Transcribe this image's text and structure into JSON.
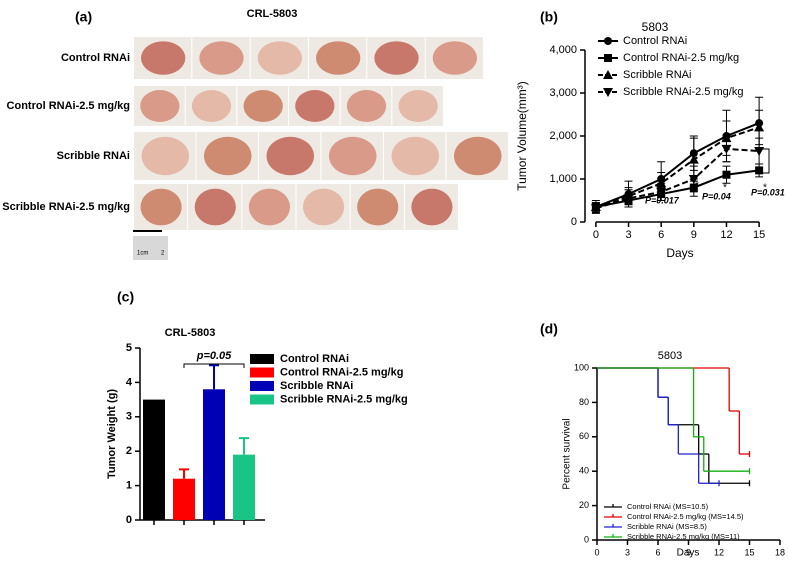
{
  "photo_panel": {
    "panel_label": "(a)",
    "title": "CRL-5803",
    "rows": [
      "Control RNAi",
      "Control RNAi-2.5 mg/kg",
      "Scribble RNAi",
      "Scribble RNAi-2.5 mg/kg"
    ],
    "scale_bar": [
      "1cm",
      "2"
    ]
  },
  "chart_data": [
    {
      "type": "line",
      "panel_label": "(b)",
      "title": "5803",
      "x_label": "Days",
      "y_label": "Tumor Volume(mm³)",
      "x": [
        0,
        3,
        6,
        9,
        12,
        15
      ],
      "xlim": [
        -1,
        16
      ],
      "xticks": [
        0,
        3,
        6,
        9,
        12,
        15
      ],
      "ylim": [
        0,
        4000
      ],
      "yticks": [
        0,
        {
          "value": 1000,
          "label": "1,000"
        },
        {
          "value": 2000,
          "label": "2,000"
        },
        {
          "value": 3000,
          "label": "3,000"
        },
        {
          "value": 4000,
          "label": "4,000"
        }
      ],
      "series": [
        {
          "name": "Control RNAi",
          "color": "#000000",
          "dash": false,
          "marker": "circle",
          "values": [
            350,
            650,
            1000,
            1600,
            2000,
            2300
          ],
          "errors": [
            150,
            300,
            400,
            400,
            600,
            600
          ]
        },
        {
          "name": "Control RNAi-2.5 mg/kg",
          "color": "#000000",
          "dash": false,
          "marker": "square",
          "values": [
            350,
            500,
            650,
            800,
            1100,
            1200
          ],
          "errors": [
            100,
            150,
            150,
            200,
            200,
            150
          ]
        },
        {
          "name": "Scribble RNAi",
          "color": "#000000",
          "dash": true,
          "marker": "triangle",
          "values": [
            350,
            600,
            900,
            1450,
            1950,
            2200
          ],
          "errors": [
            100,
            200,
            250,
            500,
            400,
            400
          ]
        },
        {
          "name": "Scribble RNAi-2.5 mg/kg",
          "color": "#000000",
          "dash": true,
          "marker": "down-triangle",
          "values": [
            320,
            550,
            700,
            1000,
            1700,
            1650
          ],
          "errors": [
            100,
            200,
            200,
            300,
            300,
            300
          ]
        }
      ],
      "annotations": [
        "P=0.017",
        "P=0.04",
        "P=0.031"
      ],
      "stars": [
        "*",
        "*",
        "*"
      ]
    },
    {
      "type": "bar",
      "panel_label": "(c)",
      "title": "CRL-5803",
      "y_label": "Tumor Weight (g)",
      "ylim": [
        0,
        5
      ],
      "yticks": [
        0,
        1,
        2,
        3,
        4,
        5
      ],
      "series": [
        {
          "name": "Control RNAi",
          "color": "#000000",
          "values": [
            3.5
          ],
          "errors": [
            0
          ]
        },
        {
          "name": "Control RNAi-2.5 mg/kg",
          "color": "#ff0000",
          "values": [
            1.2
          ],
          "errors": [
            0.27
          ]
        },
        {
          "name": "Scribble RNAi",
          "color": "#0000b4",
          "values": [
            3.8
          ],
          "errors": [
            0.7
          ]
        },
        {
          "name": "Scribble RNAi-2.5 mg/kg",
          "color": "#19c586",
          "values": [
            1.9
          ],
          "errors": [
            0.48
          ]
        }
      ],
      "annotations": [
        "p=0.05"
      ]
    },
    {
      "type": "step",
      "panel_label": "(d)",
      "title": "5803",
      "x_label": "Days",
      "y_label": "Percent survival",
      "xlim": [
        0,
        18
      ],
      "xticks": [
        0,
        3,
        6,
        9,
        12,
        15,
        18
      ],
      "ylim": [
        0,
        100
      ],
      "yticks": [
        0,
        20,
        40,
        60,
        80,
        100
      ],
      "series": [
        {
          "name": "Control RNAi (MS=10.5)",
          "color": "#000000",
          "x": [
            0,
            6,
            7,
            10,
            11,
            15
          ],
          "values": [
            100,
            83,
            67,
            50,
            33,
            33
          ]
        },
        {
          "name": "Control RNAi-2.5 mg/kg (MS=14.5)",
          "color": "#e00000",
          "x": [
            0,
            13,
            14,
            15
          ],
          "values": [
            100,
            75,
            50,
            50
          ]
        },
        {
          "name": "Scribble RNAi (MS=8.5)",
          "color": "#2020d0",
          "x": [
            0,
            6,
            7,
            8,
            10,
            12
          ],
          "values": [
            100,
            83,
            67,
            50,
            33,
            33
          ]
        },
        {
          "name": "Scribble RNAi-2.5 mg/kg (MS=11)",
          "color": "#10b010",
          "x": [
            0,
            9.5,
            10.5,
            15
          ],
          "values": [
            100,
            60,
            40,
            40
          ]
        }
      ]
    }
  ]
}
